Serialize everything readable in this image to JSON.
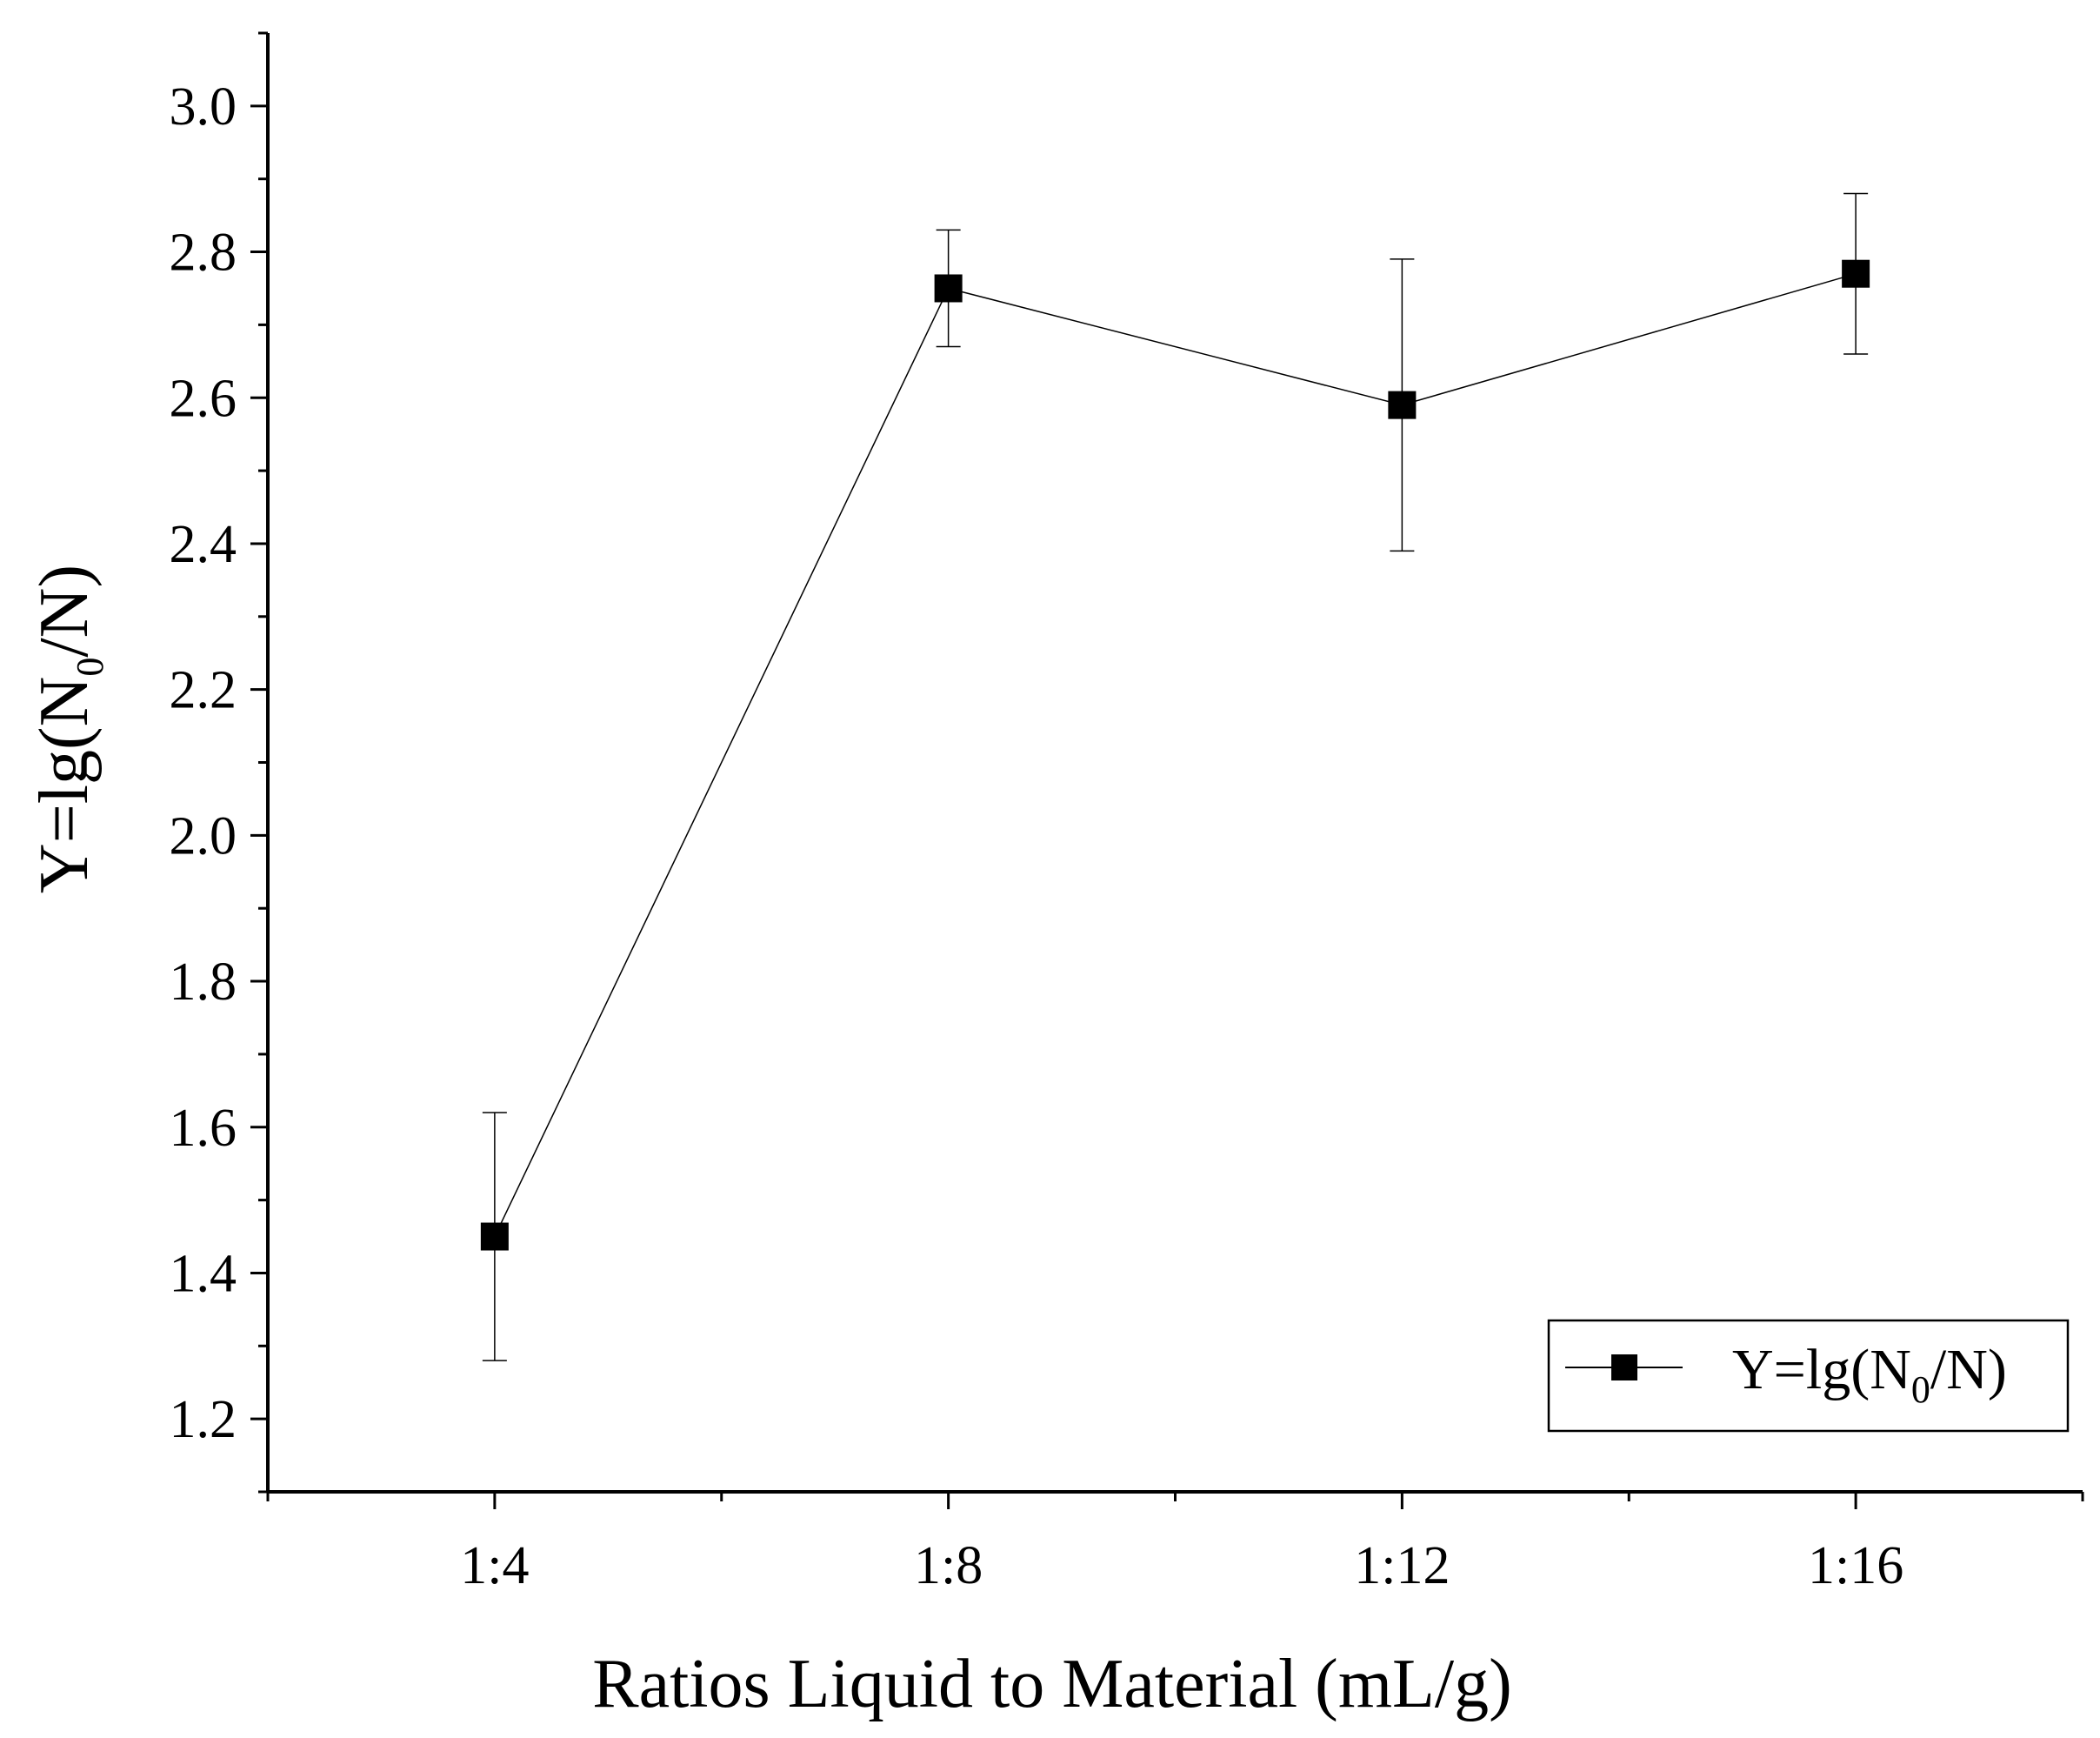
{
  "chart_data": {
    "type": "line",
    "title": "",
    "categories": [
      "1:4",
      "1:8",
      "1:12",
      "1:16"
    ],
    "series": [
      {
        "name": "Y=lg(N0/N)",
        "marker": "square",
        "values": [
          1.45,
          2.75,
          2.59,
          2.77
        ],
        "error": [
          0.17,
          0.08,
          0.2,
          0.11
        ]
      }
    ],
    "xlabel": "Ratios Liquid to Material (mL/g)",
    "ylabel": {
      "prefix": "Y=lg(N",
      "sub": "0",
      "suffix": "/N)"
    },
    "legend": {
      "prefix": "Y=lg(N",
      "sub": "0",
      "suffix": "/N)",
      "position": "bottom-right"
    },
    "ylim": [
      1.1,
      3.1
    ],
    "yticks": [
      "1.2",
      "1.4",
      "1.6",
      "1.8",
      "2.0",
      "2.2",
      "2.4",
      "2.6",
      "2.8",
      "3.0"
    ],
    "xlim": [
      0.5,
      4.5
    ],
    "grid": false,
    "colors": {
      "line": "#000000",
      "marker": "#000000",
      "axis": "#000000"
    }
  }
}
